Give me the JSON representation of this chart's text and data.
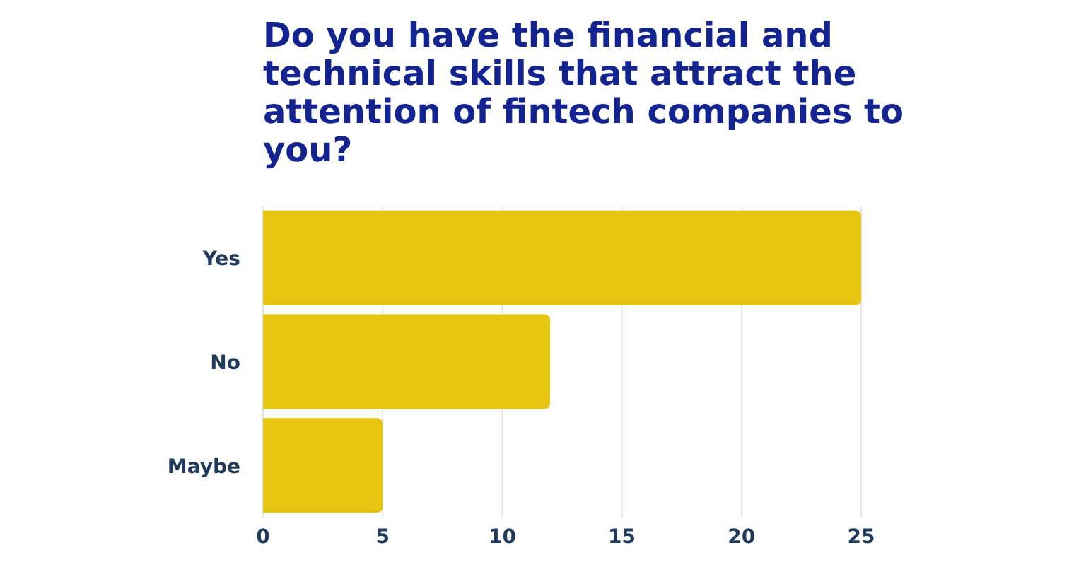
{
  "chart_data": {
    "type": "bar",
    "title": "Do you have the financial and technical skills that attract the attention of fintech companies to you?",
    "orientation": "horizontal",
    "categories": [
      "Yes",
      "No",
      "Maybe"
    ],
    "values": [
      25,
      12,
      5
    ],
    "color": "#e5c510",
    "xlim": [
      0,
      25
    ],
    "xticks": [
      0,
      5,
      10,
      15,
      20,
      25
    ],
    "grid": "x"
  }
}
